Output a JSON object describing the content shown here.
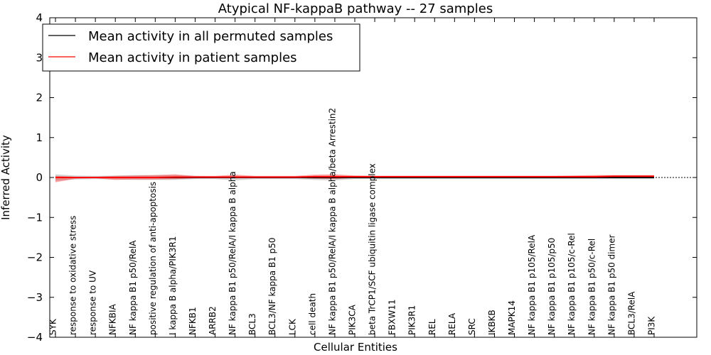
{
  "chart_data": {
    "type": "line",
    "title": "Atypical NF-kappaB pathway -- 27 samples",
    "xlabel": "Cellular Entities",
    "ylabel": "Inferred Activity",
    "ylim": [
      -4,
      4
    ],
    "yticks": [
      -4,
      -3,
      -2,
      -1,
      0,
      1,
      2,
      3,
      4
    ],
    "ytick_labels": [
      "−4",
      "−3",
      "−2",
      "−1",
      "0",
      "1",
      "2",
      "3",
      "4"
    ],
    "legend_position": "top-left",
    "categories": [
      "SYK",
      "response to oxidative stress",
      "response to UV",
      "NFKBIA",
      "NF kappa B1 p50/RelA",
      "positive regulation of anti-apoptosis",
      "I kappa B alpha/PIK3R1",
      "NFKB1",
      "ARRB2",
      "NF kappa B1 p50/RelA/I kappa B alpha",
      "BCL3",
      "BCL3/NF kappa B1 p50",
      "LCK",
      "cell death",
      "NF kappa B1 p50/RelA/I kappa B alpha/beta Arrestin2",
      "PIK3CA",
      "beta TrCP1/SCF ubiquitin ligase complex",
      "FBXW11",
      "PIK3R1",
      "REL",
      "RELA",
      "SRC",
      "IKBKB",
      "MAPK14",
      "NF kappa B1 p105/RelA",
      "NF kappa B1 p105/p50",
      "NF kappa B1 p105/c-Rel",
      "NF kappa B1 p50/c-Rel",
      "NF kappa B1 p50 dimer",
      "BCL3/RelA",
      "PI3K"
    ],
    "series": [
      {
        "name": "Mean activity in all permuted samples",
        "color": "#000000",
        "values": [
          0.0,
          0.0,
          0.0,
          0.0,
          0.0,
          0.0,
          0.0,
          0.0,
          0.0,
          0.0,
          0.0,
          0.0,
          0.0,
          0.0,
          0.0,
          0.0,
          0.0,
          0.0,
          0.0,
          0.0,
          0.0,
          0.0,
          0.0,
          0.0,
          0.0,
          0.0,
          0.0,
          0.0,
          0.0,
          0.0,
          0.0
        ],
        "band_upper": [
          0.08,
          0.05,
          0.04,
          0.05,
          0.06,
          0.06,
          0.06,
          0.04,
          0.03,
          0.04,
          0.03,
          0.03,
          0.03,
          0.04,
          0.04,
          0.03,
          0.03,
          0.03,
          0.03,
          0.03,
          0.03,
          0.03,
          0.03,
          0.03,
          0.03,
          0.03,
          0.03,
          0.03,
          0.03,
          0.03,
          0.03
        ],
        "band_lower": [
          -0.08,
          -0.05,
          -0.04,
          -0.05,
          -0.06,
          -0.06,
          -0.06,
          -0.04,
          -0.04,
          -0.07,
          -0.04,
          -0.04,
          -0.04,
          -0.06,
          -0.07,
          -0.04,
          -0.04,
          -0.04,
          -0.04,
          -0.04,
          -0.04,
          -0.04,
          -0.04,
          -0.04,
          -0.04,
          -0.04,
          -0.04,
          -0.04,
          -0.04,
          -0.04,
          -0.04
        ]
      },
      {
        "name": "Mean activity in patient samples",
        "color": "#ff0000",
        "values": [
          0.0,
          0.0,
          0.0,
          0.0,
          0.0,
          0.0,
          0.01,
          0.01,
          0.01,
          0.01,
          0.01,
          0.01,
          0.01,
          0.02,
          0.02,
          0.02,
          0.02,
          0.02,
          0.02,
          0.02,
          0.02,
          0.02,
          0.02,
          0.02,
          0.02,
          0.02,
          0.02,
          0.02,
          0.03,
          0.03,
          0.03
        ],
        "band_upper": [
          0.04,
          0.02,
          0.02,
          0.04,
          0.05,
          0.06,
          0.08,
          0.04,
          0.04,
          0.07,
          0.04,
          0.04,
          0.04,
          0.07,
          0.08,
          0.05,
          0.04,
          0.04,
          0.04,
          0.04,
          0.04,
          0.04,
          0.04,
          0.04,
          0.04,
          0.04,
          0.05,
          0.06,
          0.06,
          0.06,
          0.06
        ],
        "band_lower": [
          -0.12,
          -0.03,
          -0.02,
          -0.06,
          -0.05,
          -0.05,
          -0.04,
          -0.02,
          -0.01,
          -0.02,
          -0.01,
          -0.01,
          -0.01,
          -0.03,
          -0.04,
          -0.01,
          0.0,
          0.0,
          0.0,
          0.0,
          0.0,
          0.0,
          0.0,
          0.0,
          0.0,
          0.0,
          0.0,
          0.01,
          0.01,
          0.01,
          0.01
        ]
      }
    ]
  }
}
